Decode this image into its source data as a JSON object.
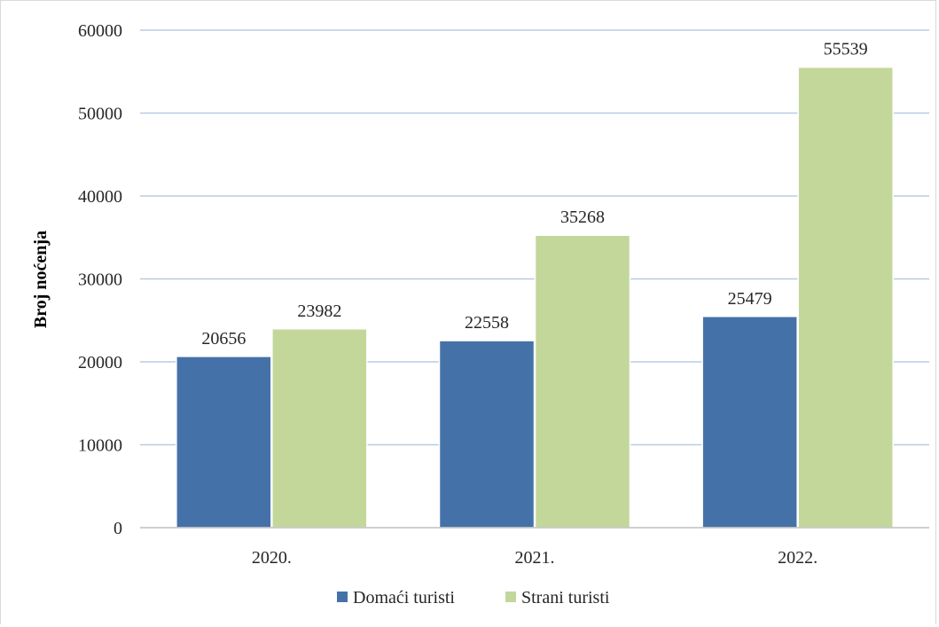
{
  "chart_data": {
    "type": "bar",
    "categories": [
      "2020.",
      "2021.",
      "2022."
    ],
    "series": [
      {
        "name": "Domaći turisti",
        "values": [
          20656,
          22558,
          25479
        ],
        "color": "#4472a8"
      },
      {
        "name": "Strani turisti",
        "values": [
          23982,
          35268,
          55539
        ],
        "color": "#c4d79b"
      }
    ],
    "title": "",
    "xlabel": "",
    "ylabel": "Broj noćenja",
    "ylim": [
      0,
      60000
    ],
    "yticks": [
      0,
      10000,
      20000,
      30000,
      40000,
      50000,
      60000
    ],
    "grid": true,
    "gridline_color": "#b8cce4",
    "legend_position": "bottom"
  }
}
